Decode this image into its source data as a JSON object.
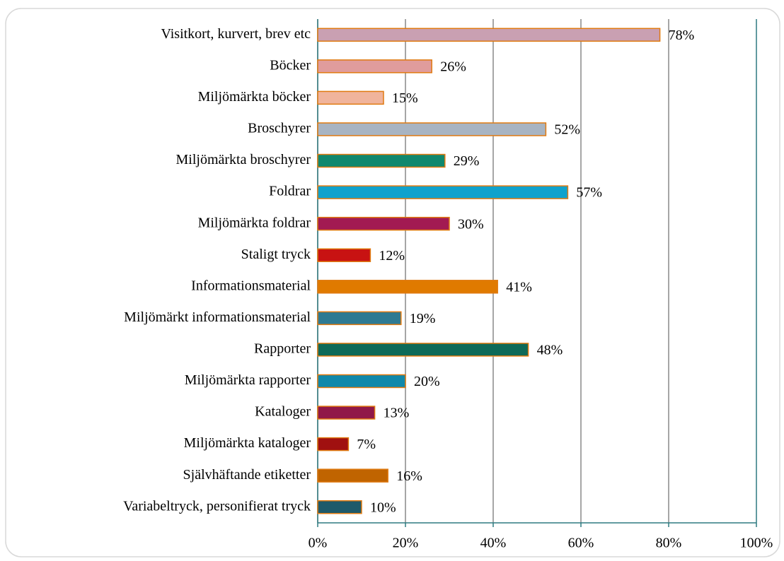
{
  "chart_data": {
    "type": "bar",
    "orientation": "horizontal",
    "categories": [
      "Visitkort, kurvert, brev etc",
      "Böcker",
      "Miljömärkta böcker",
      "Broschyrer",
      "Miljömärkta broschyrer",
      "Foldrar",
      "Miljömärkta foldrar",
      "Staligt tryck",
      "Informationsmaterial",
      "Miljömärkt informationsmaterial",
      "Rapporter",
      "Miljömärkta rapporter",
      "Kataloger",
      "Miljömärkta kataloger",
      "Självhäftande etiketter",
      "Variabeltryck, personifierat tryck"
    ],
    "values": [
      78,
      26,
      15,
      52,
      29,
      57,
      30,
      12,
      41,
      19,
      48,
      20,
      13,
      7,
      16,
      10
    ],
    "value_labels": [
      "78%",
      "26%",
      "15%",
      "52%",
      "29%",
      "57%",
      "30%",
      "12%",
      "41%",
      "19%",
      "48%",
      "20%",
      "13%",
      "7%",
      "16%",
      "10%"
    ],
    "colors": [
      "#c9a0b2",
      "#e09c9c",
      "#f0b49c",
      "#a8b4c2",
      "#10886e",
      "#10a2cc",
      "#a21a52",
      "#c81212",
      "#e07a00",
      "#2e7a92",
      "#0e6a58",
      "#1088aa",
      "#901848",
      "#a01010",
      "#c06400",
      "#1e5a6a"
    ],
    "bar_edge_color": "#e07a10",
    "xlim": [
      0,
      100
    ],
    "xticks": [
      {
        "value": 0,
        "label": "0%"
      },
      {
        "value": 20,
        "label": "20%"
      },
      {
        "value": 40,
        "label": "40%"
      },
      {
        "value": 60,
        "label": "60%"
      },
      {
        "value": 80,
        "label": "80%"
      },
      {
        "value": 100,
        "label": "100%"
      }
    ],
    "grid": true
  }
}
